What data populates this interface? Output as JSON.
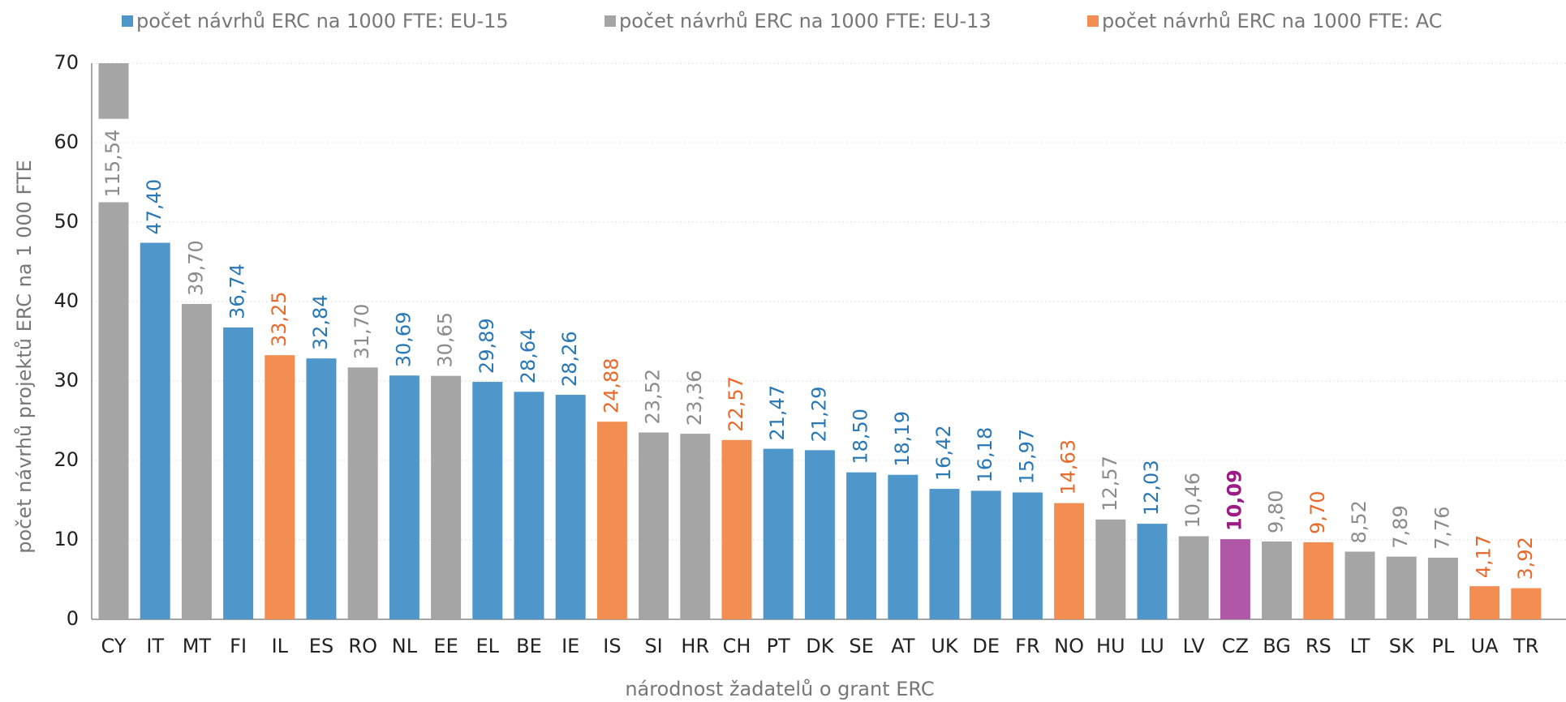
{
  "chart_data": {
    "type": "bar",
    "y_axis_label": "počet návrhů projektů ERC na 1 000 FTE",
    "x_axis_label": "národnost žadatelů o grant ERC",
    "categories": [
      "CY",
      "IT",
      "MT",
      "FI",
      "IL",
      "ES",
      "RO",
      "NL",
      "EE",
      "EL",
      "BE",
      "IE",
      "IS",
      "SI",
      "HR",
      "CH",
      "PT",
      "DK",
      "SE",
      "AT",
      "UK",
      "DE",
      "FR",
      "NO",
      "HU",
      "LU",
      "LV",
      "CZ",
      "BG",
      "RS",
      "LT",
      "SK",
      "PL",
      "UA",
      "TR"
    ],
    "series": [
      {
        "name": "počet návrhů ERC na 1000 FTE:  EU-15",
        "color": "#4f97cb",
        "label_color": "#2a78b6",
        "values": [
          null,
          47.4,
          null,
          36.74,
          null,
          32.84,
          null,
          30.69,
          null,
          29.89,
          28.64,
          28.26,
          null,
          null,
          null,
          null,
          21.47,
          21.29,
          18.5,
          18.19,
          16.42,
          16.18,
          15.97,
          null,
          null,
          12.03,
          null,
          null,
          null,
          null,
          null,
          null,
          null,
          null,
          null
        ],
        "value_labels": [
          null,
          "47,40",
          null,
          "36,74",
          null,
          "32,84",
          null,
          "30,69",
          null,
          "29,89",
          "28,64",
          "28,26",
          null,
          null,
          null,
          null,
          "21,47",
          "21,29",
          "18,50",
          "18,19",
          "16,42",
          "16,18",
          "15,97",
          null,
          null,
          "12,03",
          null,
          null,
          null,
          null,
          null,
          null,
          null,
          null,
          null
        ]
      },
      {
        "name": "počet návrhů ERC na 1000 FTE:  EU-13",
        "color": "#a5a5a5",
        "label_color": "#8c8c8c",
        "values": [
          115.54,
          null,
          39.7,
          null,
          null,
          null,
          31.7,
          null,
          30.65,
          null,
          null,
          null,
          null,
          23.52,
          23.36,
          null,
          null,
          null,
          null,
          null,
          null,
          null,
          null,
          null,
          12.57,
          null,
          10.46,
          10.09,
          9.8,
          null,
          8.52,
          7.89,
          7.76,
          null,
          null
        ],
        "value_labels": [
          "115,54",
          null,
          "39,70",
          null,
          null,
          null,
          "31,70",
          null,
          "30,65",
          null,
          null,
          null,
          null,
          "23,52",
          "23,36",
          null,
          null,
          null,
          null,
          null,
          null,
          null,
          null,
          null,
          "12,57",
          null,
          "10,46",
          "10,09",
          "9,80",
          null,
          "8,52",
          "7,89",
          "7,76",
          null,
          null
        ]
      },
      {
        "name": "počet návrhů ERC na 1000 FTE: AC",
        "color": "#f28e52",
        "label_color": "#e8692a",
        "values": [
          null,
          null,
          null,
          null,
          33.25,
          null,
          null,
          null,
          null,
          null,
          null,
          null,
          24.88,
          null,
          null,
          22.57,
          null,
          null,
          null,
          null,
          null,
          null,
          null,
          14.63,
          null,
          null,
          null,
          null,
          null,
          9.7,
          null,
          null,
          null,
          4.17,
          3.92
        ],
        "value_labels": [
          null,
          null,
          null,
          null,
          "33,25",
          null,
          null,
          null,
          null,
          null,
          null,
          null,
          "24,88",
          null,
          null,
          "22,57",
          null,
          null,
          null,
          null,
          null,
          null,
          null,
          "14,63",
          null,
          null,
          null,
          null,
          null,
          "9,70",
          null,
          null,
          null,
          "4,17",
          "3,92"
        ]
      }
    ],
    "highlight": {
      "category": "CZ",
      "color": "#b157a7",
      "label_color": "#9b1c85"
    },
    "axis_break": [
      52.5,
      63
    ],
    "ylim": [
      0,
      70
    ],
    "yticks": [
      0,
      10,
      20,
      30,
      40,
      50,
      60,
      70
    ],
    "grid": true
  }
}
